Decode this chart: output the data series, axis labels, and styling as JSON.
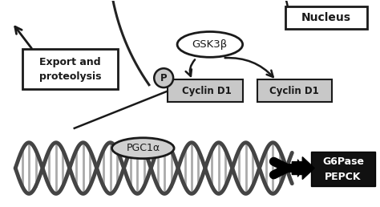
{
  "bg_color": "#ffffff",
  "nucleus_label": "Nucleus",
  "gsk3b_label": "GSK3β",
  "cyclin_d1_p_label": "Cyclin D1",
  "cyclin_d1_label": "Cyclin D1",
  "export_label": "Export and\nproteolysis",
  "pgc1a_label": "PGC1α",
  "p_label": "P",
  "g6pase_pepck_label": "G6Pase\nPEPCK",
  "box_light_gray": "#c8c8c8",
  "arrow_color": "#1a1a1a",
  "text_color": "#1a1a1a",
  "dna_dark": "#444444",
  "dna_stripe_color": "#aaaaaa",
  "nucleus_arc_color": "#222222",
  "black_box_bg": "#111111",
  "white_text": "#ffffff",
  "pgc_fill": "#d0d0d0"
}
